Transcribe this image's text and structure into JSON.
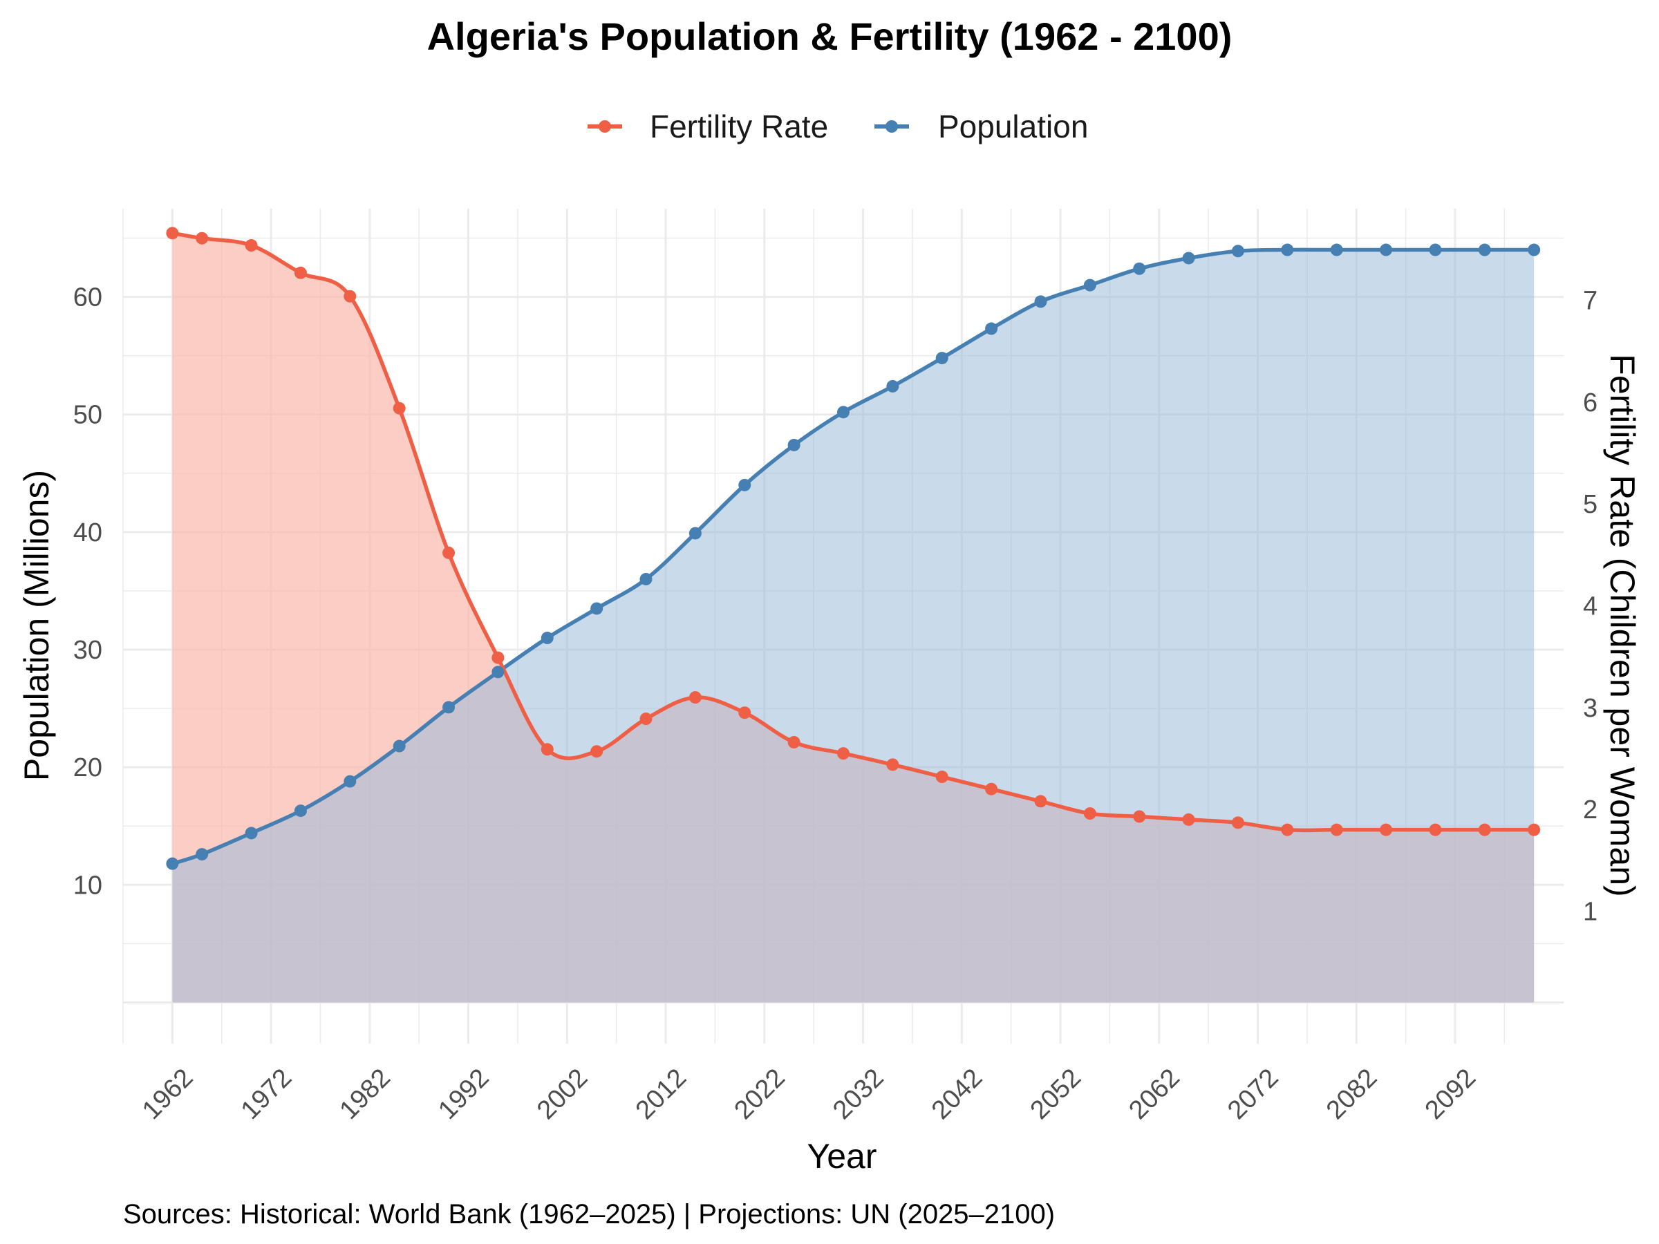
{
  "chart_data": {
    "type": "line",
    "title": "Algeria's Population & Fertility (1962 - 2100)",
    "caption": "Sources: Historical: World Bank (1962–2025) | Projections: UN (2025–2100)",
    "xlabel": "Year",
    "ylabel": "Population (Millions)",
    "ylabel_right": "Fertility Rate (Children per Woman)",
    "legend": [
      "Fertility Rate",
      "Population"
    ],
    "legend_position": "top",
    "x_ticks": [
      "1962",
      "1972",
      "1982",
      "1992",
      "2002",
      "2012",
      "2022",
      "2032",
      "2042",
      "2052",
      "2062",
      "2072",
      "2082",
      "2092"
    ],
    "y_ticks": [
      "10",
      "20",
      "30",
      "40",
      "50",
      "60"
    ],
    "y2_ticks": [
      "1",
      "2",
      "3",
      "4",
      "5",
      "6",
      "7"
    ],
    "xlim": [
      1957,
      2103
    ],
    "ylim": [
      -3.5,
      67.5
    ],
    "y2lim": [
      -0.3,
      7.9
    ],
    "colors": {
      "fertility": "#EF5F45",
      "fertility_fill": "#FBB8AB",
      "population": "#4680B3",
      "population_fill": "#9DBBDA",
      "grid": "#EBEBEB"
    },
    "series": [
      {
        "name": "Population",
        "axis": "left",
        "x": [
          1962,
          1965,
          1970,
          1975,
          1980,
          1985,
          1990,
          1995,
          2000,
          2005,
          2010,
          2015,
          2020,
          2025,
          2030,
          2035,
          2040,
          2045,
          2050,
          2055,
          2060,
          2065,
          2070,
          2075,
          2080,
          2085,
          2090,
          2095,
          2100
        ],
        "values": [
          11.8,
          12.6,
          14.4,
          16.3,
          18.8,
          21.8,
          25.1,
          28.1,
          31.0,
          33.5,
          36.0,
          39.9,
          44.0,
          47.4,
          50.2,
          52.4,
          54.8,
          57.3,
          59.6,
          61.0,
          62.4,
          63.3,
          63.9,
          64.0,
          64.0,
          64.0,
          64.0,
          64.0,
          64.0
        ]
      },
      {
        "name": "Fertility Rate",
        "axis": "right",
        "x": [
          1962,
          1965,
          1970,
          1975,
          1980,
          1985,
          1990,
          1995,
          2000,
          2005,
          2010,
          2015,
          2020,
          2025,
          2030,
          2035,
          2040,
          2045,
          2050,
          2055,
          2060,
          2065,
          2070,
          2075,
          2080,
          2085,
          2090,
          2095,
          2100
        ],
        "values": [
          7.66,
          7.61,
          7.54,
          7.27,
          7.04,
          5.94,
          4.52,
          3.49,
          2.59,
          2.57,
          2.89,
          3.1,
          2.95,
          2.66,
          2.55,
          2.44,
          2.32,
          2.2,
          2.08,
          1.96,
          1.93,
          1.9,
          1.87,
          1.8,
          1.8,
          1.8,
          1.8,
          1.8,
          1.8
        ]
      }
    ]
  }
}
